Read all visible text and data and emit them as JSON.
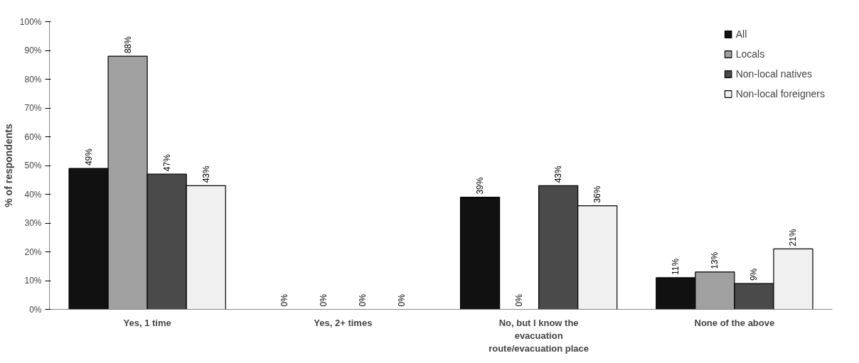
{
  "chart_data": {
    "type": "bar",
    "ylabel": "% of respondents",
    "categories": [
      "Yes, 1 time",
      "Yes, 2+ times",
      "No, but I know the evacuation route/evacuation place",
      "None of the above"
    ],
    "series": [
      {
        "name": "All",
        "color": "#111111",
        "values": [
          49,
          0,
          39,
          11
        ],
        "value_labels": [
          "49%",
          "0%",
          "39%",
          "11%"
        ]
      },
      {
        "name": "Locals",
        "color": "#a0a0a0",
        "values": [
          88,
          0,
          0,
          13
        ],
        "value_labels": [
          "88%",
          "0%",
          "0%",
          "13%"
        ]
      },
      {
        "name": "Non-local natives",
        "color": "#4a4a4a",
        "values": [
          47,
          0,
          43,
          9
        ],
        "value_labels": [
          "47%",
          "0%",
          "43%",
          "9%"
        ]
      },
      {
        "name": "Non-local foreigners",
        "color": "#f0f0f0",
        "values": [
          43,
          0,
          36,
          21
        ],
        "value_labels": [
          "43%",
          "0%",
          "36%",
          "21%"
        ]
      }
    ],
    "ylim": [
      0,
      100
    ],
    "yticks": [
      {
        "value": 0,
        "label": "0%"
      },
      {
        "value": 10,
        "label": "10%"
      },
      {
        "value": 20,
        "label": "20%"
      },
      {
        "value": 30,
        "label": "30%"
      },
      {
        "value": 40,
        "label": "40%"
      },
      {
        "value": 50,
        "label": "50%"
      },
      {
        "value": 60,
        "label": "60%"
      },
      {
        "value": 70,
        "label": "70%"
      },
      {
        "value": 80,
        "label": "80%"
      },
      {
        "value": 90,
        "label": "90%"
      },
      {
        "value": 100,
        "label": "100%"
      }
    ],
    "grid": false,
    "legend": "top right"
  }
}
